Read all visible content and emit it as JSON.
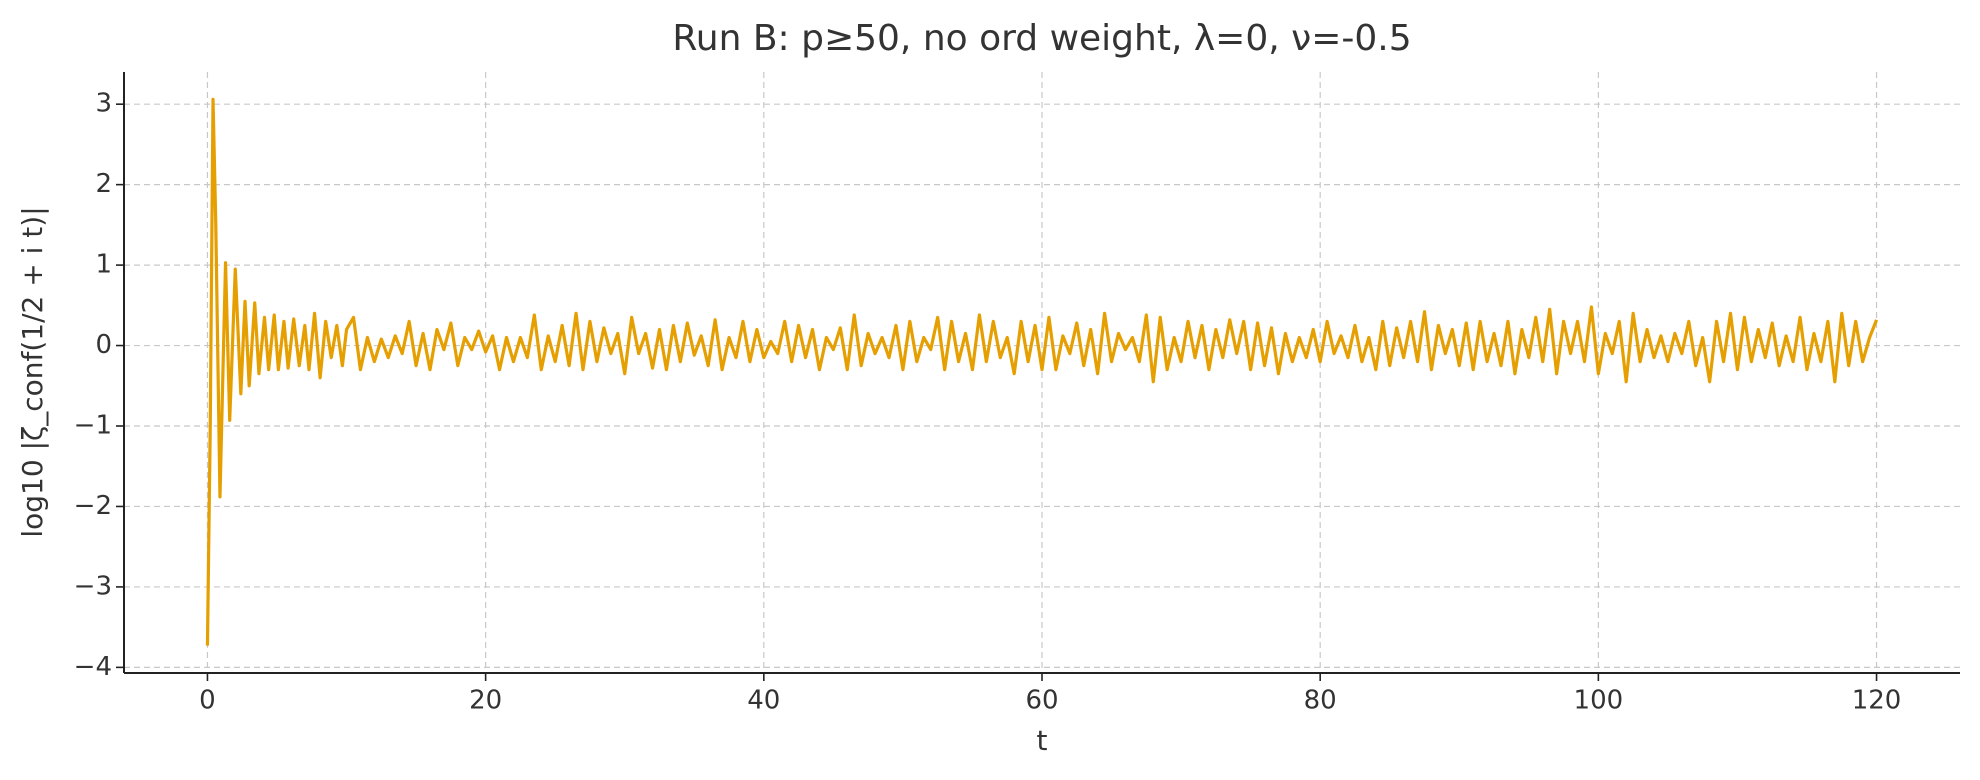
{
  "chart_data": {
    "type": "line",
    "title": "Run B: p≥50, no ord weight, λ=0, ν=-0.5",
    "xlabel": "t",
    "ylabel": "log10 |ζ_conf(1/2 + i t)|",
    "color": "#E69F00",
    "grid": true,
    "xlim": [
      -6,
      126
    ],
    "ylim": [
      -4.07,
      3.4
    ],
    "xticks": [
      0,
      20,
      40,
      60,
      80,
      100,
      120
    ],
    "yticks": [
      {
        "value": -4,
        "label": "−4"
      },
      {
        "value": -3,
        "label": "−3"
      },
      {
        "value": -2,
        "label": "−2"
      },
      {
        "value": -1,
        "label": "−1"
      },
      0,
      1,
      2,
      3
    ],
    "x": [
      0,
      0.2,
      0.4,
      0.6,
      0.9,
      1.3,
      1.6,
      2.0,
      2.4,
      2.7,
      3.0,
      3.4,
      3.7,
      4.1,
      4.4,
      4.8,
      5.1,
      5.5,
      5.8,
      6.2,
      6.6,
      7.0,
      7.3,
      7.7,
      8.1,
      8.5,
      8.9,
      9.3,
      9.7,
      10.0,
      10.5,
      11,
      11.5,
      12,
      12.5,
      13,
      13.5,
      14,
      14.5,
      15,
      15.5,
      16,
      16.5,
      17,
      17.5,
      18,
      18.5,
      19,
      19.5,
      20,
      20.5,
      21,
      21.5,
      22,
      22.5,
      23,
      23.5,
      24,
      24.5,
      25,
      25.5,
      26,
      26.5,
      27,
      27.5,
      28,
      28.5,
      29,
      29.5,
      30,
      30.5,
      31,
      31.5,
      32,
      32.5,
      33,
      33.5,
      34,
      34.5,
      35,
      35.5,
      36,
      36.5,
      37,
      37.5,
      38,
      38.5,
      39,
      39.5,
      40,
      40.5,
      41,
      41.5,
      42,
      42.5,
      43,
      43.5,
      44,
      44.5,
      45,
      45.5,
      46,
      46.5,
      47,
      47.5,
      48,
      48.5,
      49,
      49.5,
      50,
      50.5,
      51,
      51.5,
      52,
      52.5,
      53,
      53.5,
      54,
      54.5,
      55,
      55.5,
      56,
      56.5,
      57,
      57.5,
      58,
      58.5,
      59,
      59.5,
      60,
      60.5,
      61,
      61.5,
      62,
      62.5,
      63,
      63.5,
      64,
      64.5,
      65,
      65.5,
      66,
      66.5,
      67,
      67.5,
      68,
      68.5,
      69,
      69.5,
      70,
      70.5,
      71,
      71.5,
      72,
      72.5,
      73,
      73.5,
      74,
      74.5,
      75,
      75.5,
      76,
      76.5,
      77,
      77.5,
      78,
      78.5,
      79,
      79.5,
      80,
      80.5,
      81,
      81.5,
      82,
      82.5,
      83,
      83.5,
      84,
      84.5,
      85,
      85.5,
      86,
      86.5,
      87,
      87.5,
      88,
      88.5,
      89,
      89.5,
      90,
      90.5,
      91,
      91.5,
      92,
      92.5,
      93,
      93.5,
      94,
      94.5,
      95,
      95.5,
      96,
      96.5,
      97,
      97.5,
      98,
      98.5,
      99,
      99.5,
      100,
      100.5,
      101,
      101.5,
      102,
      102.5,
      103,
      103.5,
      104,
      104.5,
      105,
      105.5,
      106,
      106.5,
      107,
      107.5,
      108,
      108.5,
      109,
      109.5,
      110,
      110.5,
      111,
      111.5,
      112,
      112.5,
      113,
      113.5,
      114,
      114.5,
      115,
      115.5,
      116,
      116.5,
      117,
      117.5,
      118,
      118.5,
      119,
      119.5,
      120
    ],
    "values": [
      -3.73,
      -1.0,
      3.06,
      1.5,
      -1.88,
      1.03,
      -0.93,
      0.95,
      -0.6,
      0.55,
      -0.5,
      0.53,
      -0.35,
      0.35,
      -0.3,
      0.38,
      -0.3,
      0.3,
      -0.28,
      0.33,
      -0.25,
      0.25,
      -0.3,
      0.4,
      -0.4,
      0.3,
      -0.15,
      0.25,
      -0.25,
      0.2,
      0.35,
      -0.3,
      0.1,
      -0.2,
      0.08,
      -0.15,
      0.12,
      -0.1,
      0.3,
      -0.25,
      0.15,
      -0.3,
      0.2,
      -0.05,
      0.28,
      -0.25,
      0.1,
      -0.05,
      0.18,
      -0.08,
      0.12,
      -0.3,
      0.1,
      -0.2,
      0.1,
      -0.15,
      0.38,
      -0.3,
      0.12,
      -0.2,
      0.25,
      -0.25,
      0.4,
      -0.3,
      0.3,
      -0.2,
      0.22,
      -0.1,
      0.15,
      -0.35,
      0.35,
      -0.1,
      0.15,
      -0.28,
      0.2,
      -0.3,
      0.25,
      -0.2,
      0.28,
      -0.12,
      0.12,
      -0.25,
      0.32,
      -0.3,
      0.1,
      -0.15,
      0.3,
      -0.2,
      0.2,
      -0.15,
      0.05,
      -0.1,
      0.3,
      -0.2,
      0.25,
      -0.15,
      0.2,
      -0.3,
      0.1,
      -0.05,
      0.22,
      -0.3,
      0.38,
      -0.25,
      0.15,
      -0.1,
      0.1,
      -0.15,
      0.25,
      -0.3,
      0.3,
      -0.2,
      0.1,
      -0.05,
      0.35,
      -0.3,
      0.3,
      -0.2,
      0.15,
      -0.3,
      0.38,
      -0.2,
      0.3,
      -0.15,
      0.1,
      -0.35,
      0.3,
      -0.2,
      0.25,
      -0.3,
      0.35,
      -0.3,
      0.12,
      -0.1,
      0.28,
      -0.25,
      0.2,
      -0.35,
      0.4,
      -0.2,
      0.15,
      -0.05,
      0.1,
      -0.2,
      0.38,
      -0.45,
      0.35,
      -0.3,
      0.1,
      -0.2,
      0.3,
      -0.15,
      0.25,
      -0.3,
      0.2,
      -0.15,
      0.32,
      -0.1,
      0.3,
      -0.3,
      0.28,
      -0.25,
      0.22,
      -0.35,
      0.15,
      -0.2,
      0.1,
      -0.15,
      0.2,
      -0.2,
      0.3,
      -0.1,
      0.12,
      -0.15,
      0.25,
      -0.2,
      0.1,
      -0.3,
      0.3,
      -0.25,
      0.22,
      -0.15,
      0.3,
      -0.2,
      0.42,
      -0.3,
      0.25,
      -0.1,
      0.2,
      -0.25,
      0.28,
      -0.3,
      0.3,
      -0.2,
      0.15,
      -0.25,
      0.3,
      -0.35,
      0.2,
      -0.15,
      0.35,
      -0.2,
      0.45,
      -0.35,
      0.3,
      -0.1,
      0.3,
      -0.2,
      0.48,
      -0.35,
      0.15,
      -0.1,
      0.3,
      -0.45,
      0.4,
      -0.2,
      0.2,
      -0.15,
      0.12,
      -0.2,
      0.15,
      -0.1,
      0.3,
      -0.25,
      0.1,
      -0.45,
      0.3,
      -0.2,
      0.4,
      -0.3,
      0.35,
      -0.2,
      0.2,
      -0.15,
      0.28,
      -0.25,
      0.12,
      -0.2,
      0.35,
      -0.3,
      0.15,
      -0.2,
      0.3,
      -0.45,
      0.4,
      -0.25,
      0.3,
      -0.2,
      0.1,
      0.32
    ]
  }
}
